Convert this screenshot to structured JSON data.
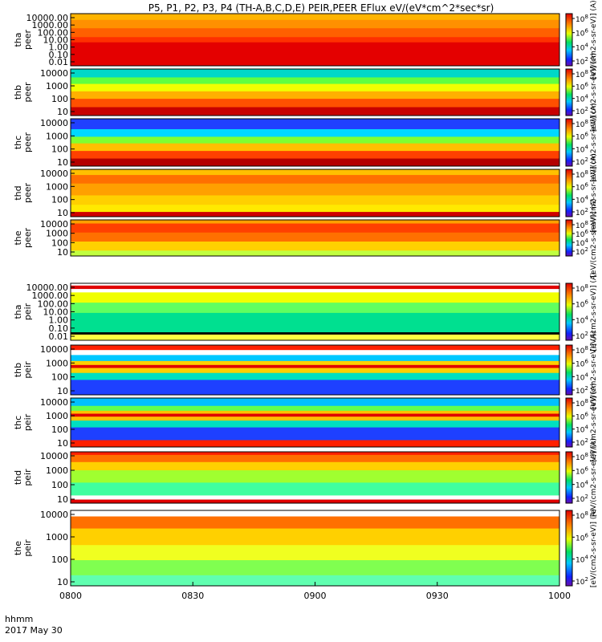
{
  "chart_data": {
    "type": "heatmap",
    "title": "P5, P1, P2, P3, P4 (TH-A,B,C,D,E) PEIR,PEER EFlux eV/(eV*cm^2*sec*sr)",
    "x_ticks": [
      "0800",
      "0830",
      "0900",
      "0930",
      "1000"
    ],
    "x_range": [
      "0800",
      "1000"
    ],
    "x_label_line1": "hhmm",
    "x_label_line2": "2017 May 30",
    "colorbar_label": "[eV/(cm2-s-sr-eV)] (A)",
    "colorbar_ticks": [
      {
        "base": "10",
        "exp": "8"
      },
      {
        "base": "10",
        "exp": "6"
      },
      {
        "base": "10",
        "exp": "4"
      },
      {
        "base": "10",
        "exp": "2"
      }
    ],
    "panels": [
      {
        "id": "tha-peer",
        "label_line1": "tha",
        "label_line2": "peer",
        "y_ticks": [
          "10000.00",
          "1000.00",
          "100.00",
          "10.00",
          "1.00",
          "0.10",
          "0.01"
        ],
        "scale": "log"
      },
      {
        "id": "thb-peer",
        "label_line1": "thb",
        "label_line2": "peer",
        "y_ticks": [
          "10000",
          "1000",
          "100",
          "10"
        ],
        "scale": "log"
      },
      {
        "id": "thc-peer",
        "label_line1": "thc",
        "label_line2": "peer",
        "y_ticks": [
          "10000",
          "1000",
          "100",
          "10"
        ],
        "scale": "log"
      },
      {
        "id": "thd-peer",
        "label_line1": "thd",
        "label_line2": "peer",
        "y_ticks": [
          "10000",
          "1000",
          "100",
          "10"
        ],
        "scale": "log"
      },
      {
        "id": "the-peer",
        "label_line1": "the",
        "label_line2": "peer",
        "y_ticks": [
          "10000",
          "1000",
          "100",
          "10"
        ],
        "scale": "log"
      },
      {
        "id": "tha-peir",
        "label_line1": "tha",
        "label_line2": "peir",
        "y_ticks": [
          "10000.00",
          "1000.00",
          "100.00",
          "10.00",
          "1.00",
          "0.10",
          "0.01"
        ],
        "scale": "log"
      },
      {
        "id": "thb-peir",
        "label_line1": "thb",
        "label_line2": "peir",
        "y_ticks": [
          "10000",
          "1000",
          "100",
          "10"
        ],
        "scale": "log"
      },
      {
        "id": "thc-peir",
        "label_line1": "thc",
        "label_line2": "peir",
        "y_ticks": [
          "10000",
          "1000",
          "100",
          "10"
        ],
        "scale": "log"
      },
      {
        "id": "thd-peir",
        "label_line1": "thd",
        "label_line2": "peir",
        "y_ticks": [
          "10000",
          "1000",
          "100",
          "10"
        ],
        "scale": "log"
      },
      {
        "id": "the-peir",
        "label_line1": "the",
        "label_line2": "peir",
        "y_ticks": [
          "10000",
          "1000",
          "100",
          "10"
        ],
        "scale": "log"
      }
    ]
  }
}
